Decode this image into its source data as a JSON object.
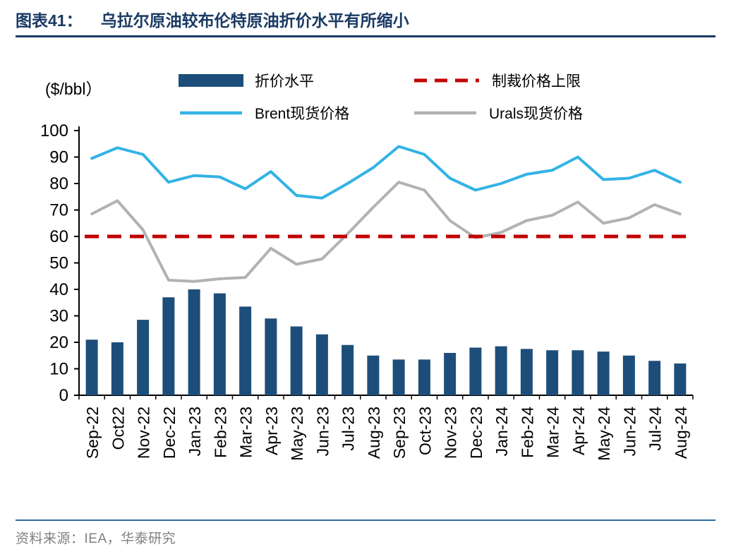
{
  "header": {
    "label": "图表41：",
    "title": "乌拉尔原油较布伦特原油折价水平有所缩小"
  },
  "legend": {
    "items": [
      {
        "label": "折价水平",
        "type": "bar",
        "color": "#1d4e79"
      },
      {
        "label": "制裁价格上限",
        "type": "dashed-line",
        "color": "#c00000"
      },
      {
        "label": "Brent现货价格",
        "type": "line",
        "color": "#33b3e5"
      },
      {
        "label": "Urals现货价格",
        "type": "line",
        "color": "#b2b2b2"
      }
    ]
  },
  "chart_data": {
    "type": "combo",
    "title": "乌拉尔原油较布伦特原油折价水平有所缩小",
    "ylabel": "($/bbl）",
    "ylim": [
      0,
      100
    ],
    "ytick_step": 10,
    "grid": false,
    "legend_position": "top",
    "categories": [
      "Sep-22",
      "Oct22",
      "Nov-22",
      "Dec-22",
      "Jan-23",
      "Feb-23",
      "Mar-23",
      "Apr-23",
      "May-23",
      "Jun-23",
      "Jul-23",
      "Aug-23",
      "Sep-23",
      "Oct-23",
      "Nov-23",
      "Dec-23",
      "Jan-24",
      "Feb-24",
      "Mar-24",
      "Apr-24",
      "May-24",
      "Jun-24",
      "Jul-24",
      "Aug-24"
    ],
    "series": [
      {
        "id": "discount",
        "name": "折价水平",
        "type": "bar",
        "color": "#1d4e79",
        "z": 1,
        "values": [
          21,
          20,
          28.5,
          37,
          40,
          38.5,
          33.5,
          29,
          26,
          23,
          19,
          15,
          13.5,
          13.5,
          16,
          18,
          18.5,
          17.5,
          17,
          17,
          16.5,
          15,
          13,
          12
        ]
      },
      {
        "id": "urals",
        "name": "Urals现货价格",
        "type": "line",
        "color": "#b2b2b2",
        "z": 2,
        "values": [
          68.5,
          73.5,
          62.5,
          43.5,
          43,
          44,
          44.5,
          55.5,
          49.5,
          51.5,
          61,
          71,
          80.5,
          77.5,
          66,
          59.5,
          61.5,
          66,
          68,
          73,
          65,
          67,
          72,
          68.5
        ]
      },
      {
        "id": "price-cap",
        "name": "制裁价格上限",
        "type": "constant-dashed-line",
        "color": "#c00000",
        "z": 3,
        "value": 60
      },
      {
        "id": "brent",
        "name": "Brent现货价格",
        "type": "line",
        "color": "#33b3e5",
        "z": 4,
        "values": [
          89.5,
          93.5,
          91,
          80.5,
          83,
          82.5,
          78,
          84.5,
          75.5,
          74.5,
          80,
          86,
          94,
          91,
          82,
          77.5,
          80,
          83.5,
          85,
          90,
          81.5,
          82,
          85,
          80.5
        ]
      }
    ]
  },
  "footer": {
    "source": "资料来源：IEA，华泰研究"
  },
  "colors": {
    "title_text": "#1a3a64",
    "title_rule": "#1a3a64",
    "footer_rule": "#2e6da4",
    "source_text": "#808080",
    "axis": "#000000"
  }
}
